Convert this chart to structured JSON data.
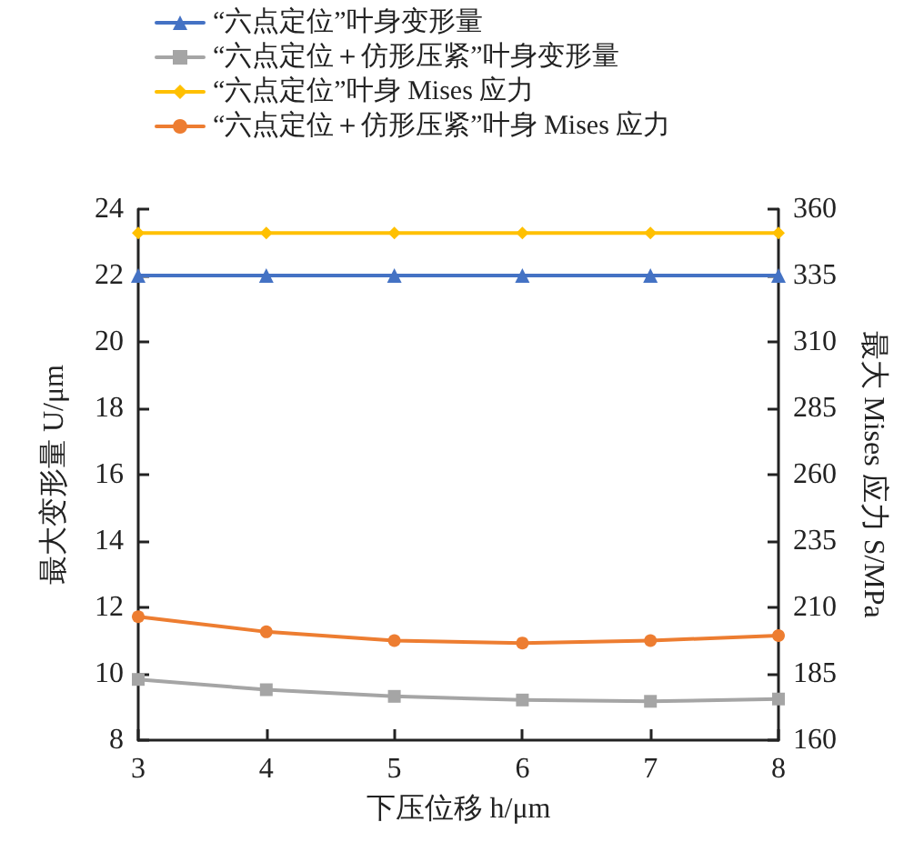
{
  "chart_data": {
    "type": "line",
    "xlabel": "下压位移 h/μm",
    "ylabel": "最大变形量 U/μm",
    "y2label": "最大 Mises 应力 S/MPa",
    "x": [
      3,
      4,
      5,
      6,
      7,
      8
    ],
    "xlim": [
      3,
      8
    ],
    "xticks": [
      3,
      4,
      5,
      6,
      7,
      8
    ],
    "ylim": [
      8,
      24
    ],
    "yticks": [
      8,
      10,
      12,
      14,
      16,
      18,
      20,
      22,
      24
    ],
    "y2lim": [
      160,
      360
    ],
    "y2ticks": [
      160,
      185,
      210,
      235,
      260,
      285,
      310,
      335,
      360
    ],
    "grid": false,
    "legend": "top left",
    "line_style": "solid",
    "series": [
      {
        "name": "“六点定位”叶身变形量",
        "color": "#4472c4",
        "marker": "triangle",
        "values": [
          22,
          22,
          22,
          22,
          22,
          22
        ]
      },
      {
        "name": "“六点定位＋仿形压紧”叶身变形量",
        "color": "#a5a5a5",
        "marker": "square",
        "values": [
          9.83,
          9.52,
          9.32,
          9.21,
          9.17,
          9.24
        ]
      },
      {
        "name": "“六点定位”叶身 Mises 应力",
        "color": "#ffc000",
        "marker": "diamond",
        "axis": "y2",
        "values": [
          351,
          351,
          351,
          351,
          351,
          351
        ]
      },
      {
        "name": "“六点定位＋仿形压紧”叶身 Mises 应力",
        "color": "#ed7d31",
        "marker": "circle",
        "axis": "y2",
        "values": [
          206.5,
          200.8,
          197.5,
          196.6,
          197.5,
          199.4
        ]
      }
    ]
  }
}
